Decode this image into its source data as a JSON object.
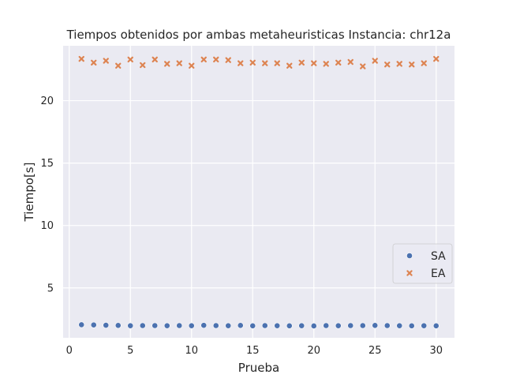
{
  "chart_data": {
    "type": "scatter",
    "title": "Tiempos obtenidos por ambas metaheuristicas Instancia: chr12a",
    "xlabel": "Prueba",
    "ylabel": "Tiempo[s]",
    "xlim": [
      -0.5,
      31.5
    ],
    "ylim": [
      1.0,
      24.4
    ],
    "xticks": [
      0,
      5,
      10,
      15,
      20,
      25,
      30
    ],
    "yticks": [
      5,
      10,
      15,
      20
    ],
    "grid": true,
    "legend_position": "center-right",
    "series": [
      {
        "name": "SA",
        "marker": "circle",
        "color": "#4c72b0",
        "x": [
          1,
          2,
          3,
          4,
          5,
          6,
          7,
          8,
          9,
          10,
          11,
          12,
          13,
          14,
          15,
          16,
          17,
          18,
          19,
          20,
          21,
          22,
          23,
          24,
          25,
          26,
          27,
          28,
          29,
          30
        ],
        "y": [
          2.05,
          2.03,
          2.01,
          1.99,
          1.97,
          1.98,
          1.98,
          1.97,
          1.98,
          1.97,
          2.0,
          1.98,
          1.97,
          1.99,
          1.96,
          1.98,
          1.97,
          1.96,
          1.97,
          1.95,
          1.98,
          1.97,
          1.98,
          1.98,
          1.99,
          1.98,
          1.97,
          1.96,
          1.97,
          1.96
        ]
      },
      {
        "name": "EA",
        "marker": "x",
        "color": "#dd8452",
        "x": [
          1,
          2,
          3,
          4,
          5,
          6,
          7,
          8,
          9,
          10,
          11,
          12,
          13,
          14,
          15,
          16,
          17,
          18,
          19,
          20,
          21,
          22,
          23,
          24,
          25,
          26,
          27,
          28,
          29,
          30
        ],
        "y": [
          23.35,
          23.05,
          23.2,
          22.8,
          23.3,
          22.85,
          23.3,
          22.95,
          23.0,
          22.8,
          23.3,
          23.3,
          23.25,
          23.0,
          23.05,
          23.0,
          23.0,
          22.8,
          23.05,
          23.0,
          22.95,
          23.05,
          23.1,
          22.75,
          23.2,
          22.9,
          22.95,
          22.9,
          23.0,
          23.35
        ]
      }
    ]
  }
}
